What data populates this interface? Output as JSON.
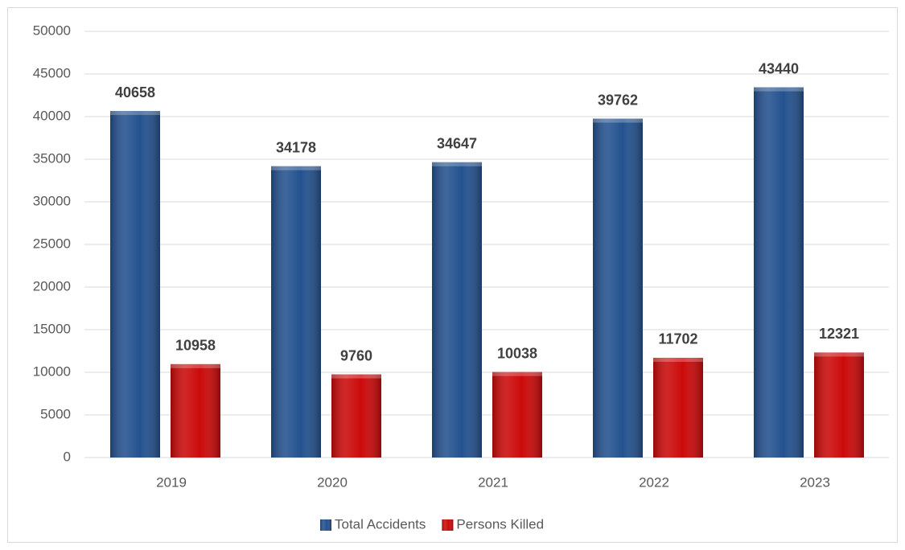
{
  "chart_data": {
    "type": "bar",
    "categories": [
      "2019",
      "2020",
      "2021",
      "2022",
      "2023"
    ],
    "series": [
      {
        "name": "Total Accidents",
        "color": "#24528f",
        "values": [
          40658,
          34178,
          34647,
          39762,
          43440
        ]
      },
      {
        "name": "Persons Killed",
        "color": "#cc0a0a",
        "values": [
          10958,
          9760,
          10038,
          11702,
          12321
        ]
      }
    ],
    "ylim": [
      0,
      50000
    ],
    "yticks": [
      0,
      5000,
      10000,
      15000,
      20000,
      25000,
      30000,
      35000,
      40000,
      45000,
      50000
    ],
    "grid": true,
    "legend": "bottom"
  }
}
